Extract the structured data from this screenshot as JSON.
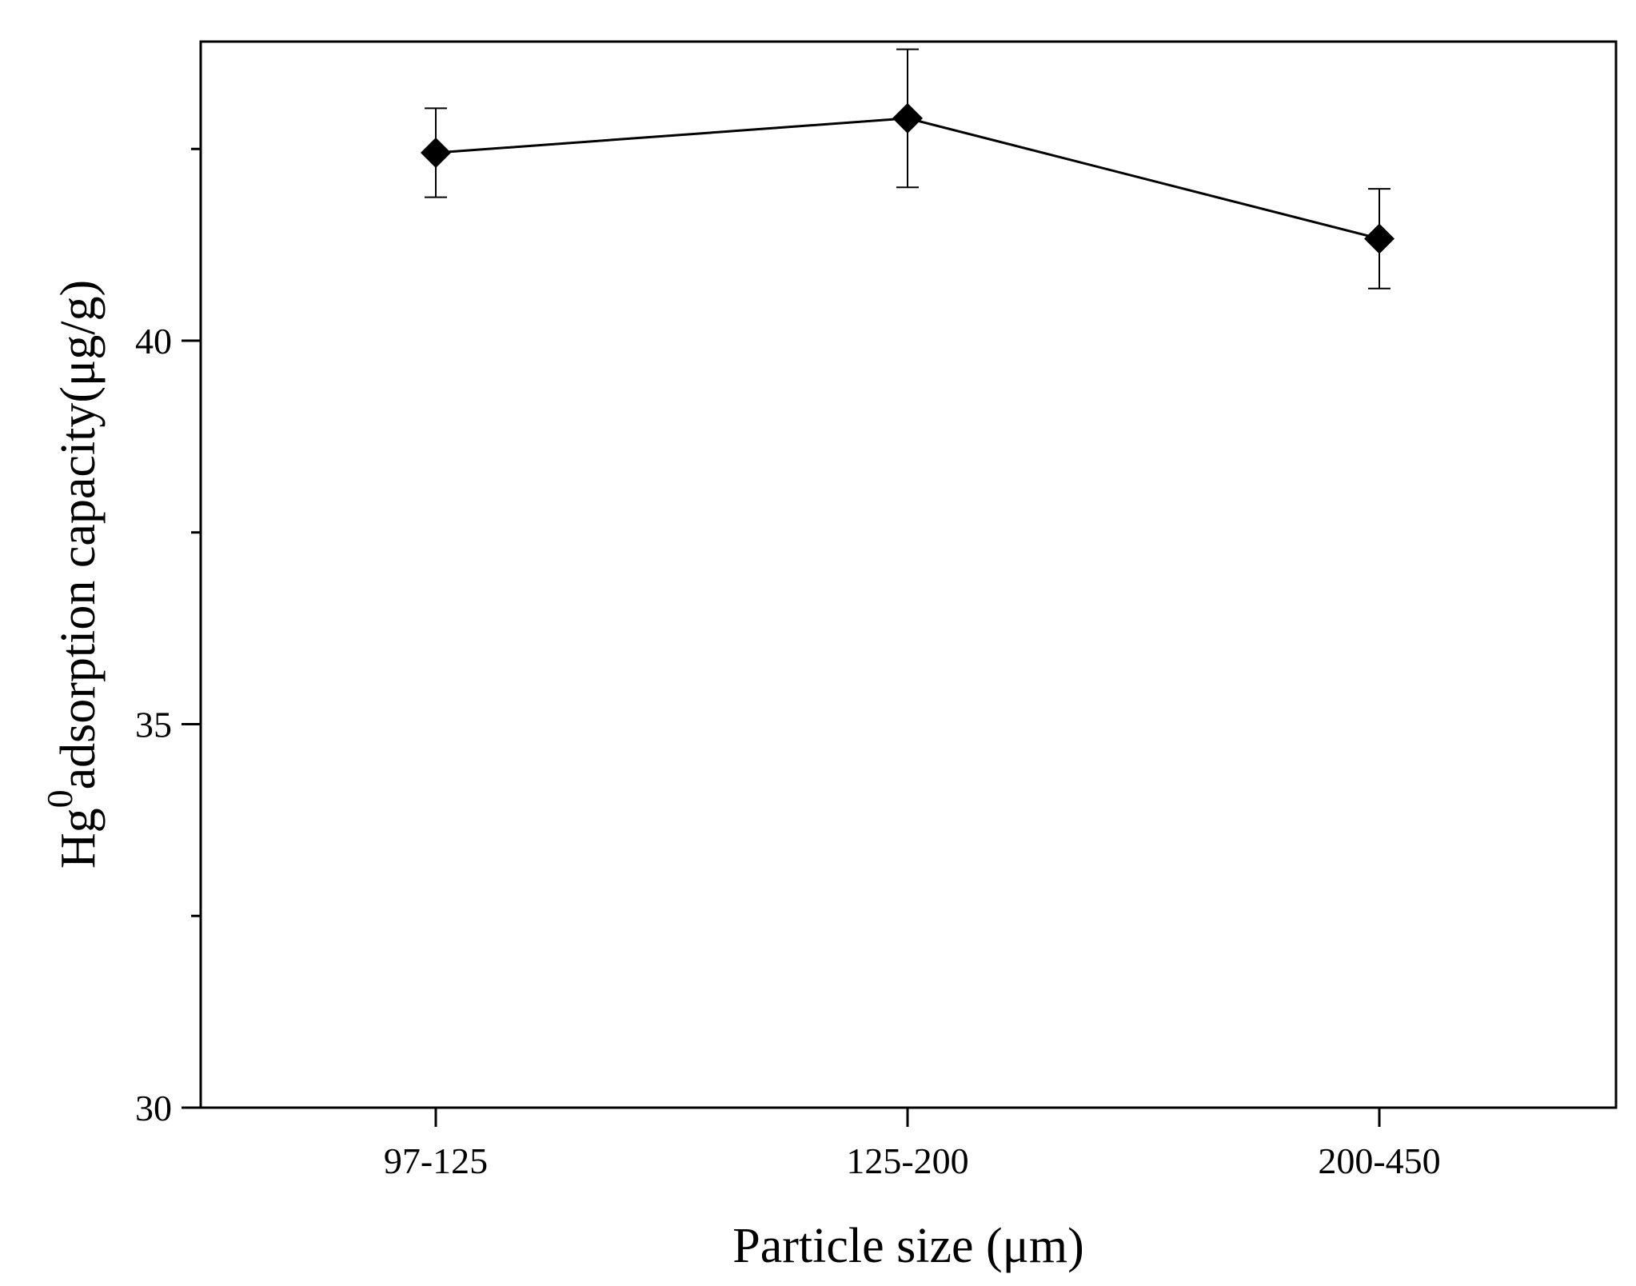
{
  "chart_data": {
    "type": "line",
    "categories": [
      "97-125",
      "125-200",
      "200-450"
    ],
    "series": [
      {
        "values": [
          42.45,
          42.9,
          41.33
        ],
        "error": [
          0.58,
          0.9,
          0.65
        ],
        "marker": "diamond",
        "color": "#000000"
      }
    ],
    "xlabel": "Particle size (μm)",
    "ylabel": {
      "prefix": "Hg",
      "superscript": "0",
      "suffix": "adsorption capacity(μg/g)"
    },
    "ylim": [
      30,
      43.9
    ],
    "yticks_major": [
      30,
      35,
      40
    ],
    "yticks_minor": [
      32.5,
      37.5,
      42.5
    ],
    "grid": false,
    "legend": "none"
  }
}
